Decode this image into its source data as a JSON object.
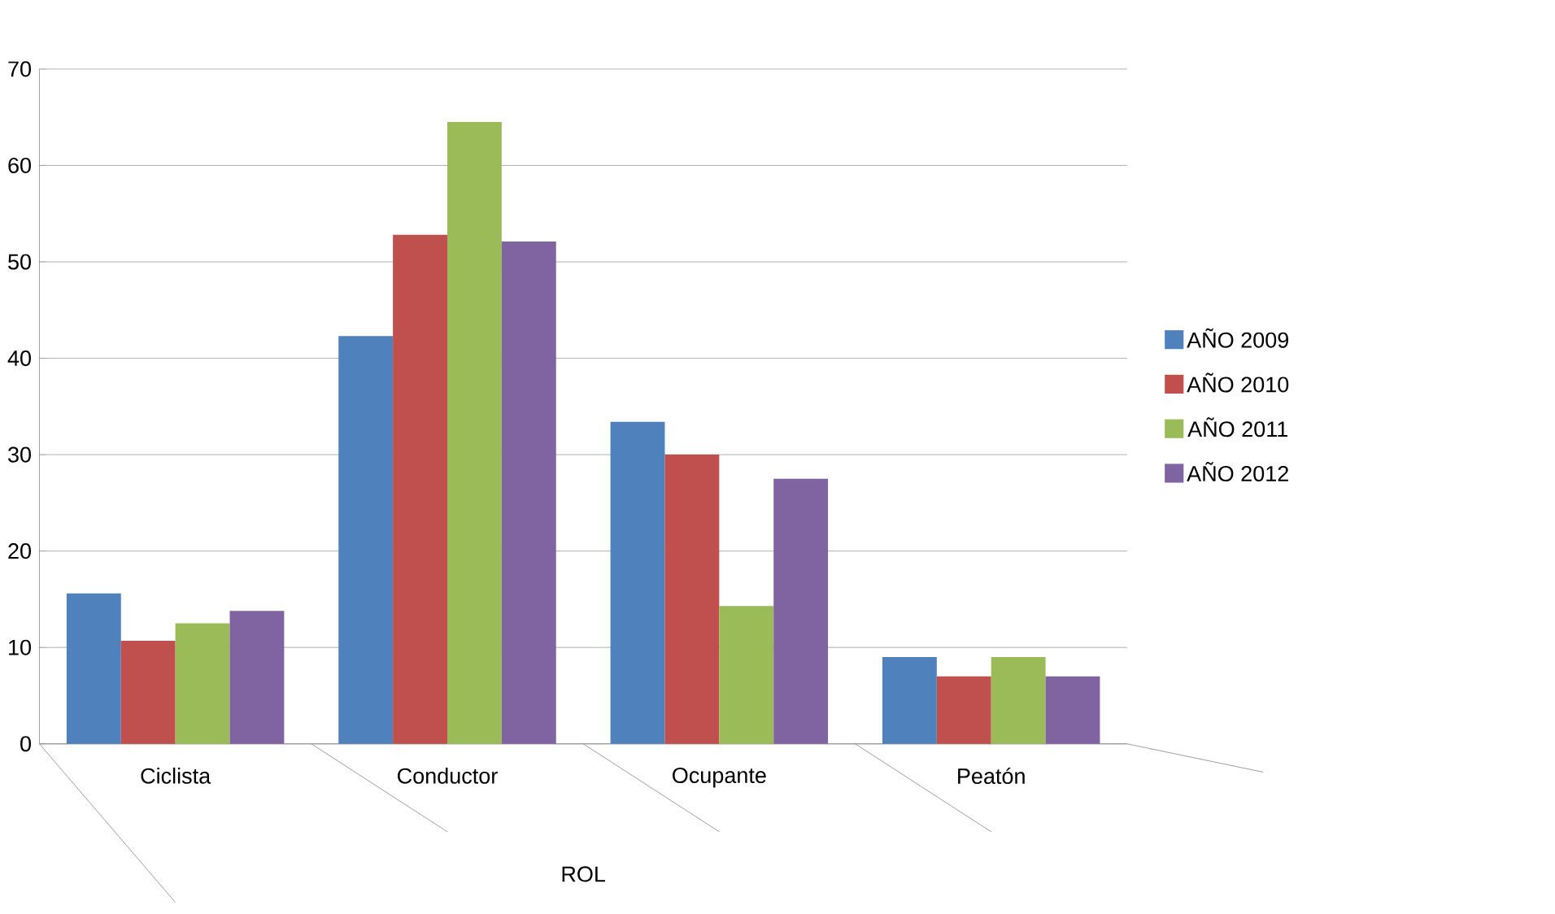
{
  "chart_data": {
    "type": "bar",
    "xlabel": "ROL",
    "categories": [
      "Ciclista",
      "Conductor",
      "Ocupante",
      "Peatón"
    ],
    "series": [
      {
        "name": "AÑO 2009",
        "color": "#4f81bd",
        "values": [
          15.6,
          42.3,
          33.4,
          9.0
        ]
      },
      {
        "name": "AÑO 2010",
        "color": "#c0504d",
        "values": [
          10.7,
          52.8,
          30.0,
          7.0
        ]
      },
      {
        "name": "AÑO 2011",
        "color": "#9bbb59",
        "values": [
          12.5,
          64.5,
          14.3,
          9.0
        ]
      },
      {
        "name": "AÑO 2012",
        "color": "#8064a2",
        "values": [
          13.8,
          52.1,
          27.5,
          7.0
        ]
      }
    ],
    "ylim": [
      0,
      70
    ],
    "yticks": [
      0,
      10,
      20,
      30,
      40,
      50,
      60,
      70
    ],
    "grid": "y",
    "legend": "right"
  }
}
